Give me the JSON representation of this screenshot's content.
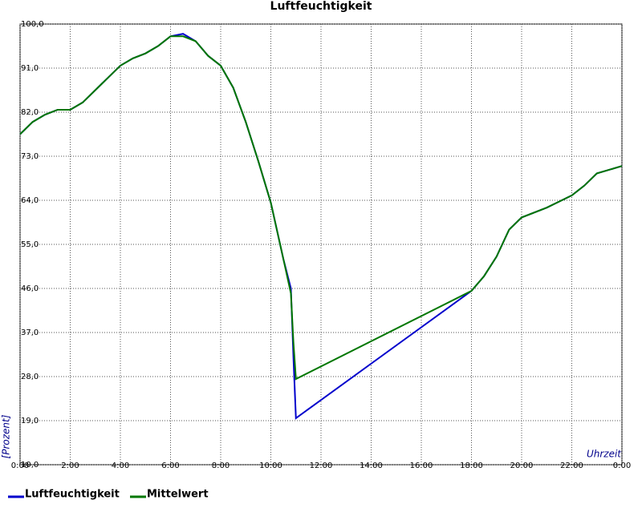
{
  "chart_data": {
    "type": "line",
    "title": "Luftfeuchtigkeit",
    "x_label": "Uhrzeit",
    "y_label": "[Prozent]",
    "xlim": [
      0,
      24
    ],
    "xticks": [
      {
        "value": 0,
        "label": "0:00"
      },
      {
        "value": 2,
        "label": "2:00"
      },
      {
        "value": 4,
        "label": "4:00"
      },
      {
        "value": 6,
        "label": "6:00"
      },
      {
        "value": 8,
        "label": "8:00"
      },
      {
        "value": 10,
        "label": "10:00"
      },
      {
        "value": 12,
        "label": "12:00"
      },
      {
        "value": 14,
        "label": "14:00"
      },
      {
        "value": 16,
        "label": "16:00"
      },
      {
        "value": 18,
        "label": "18:00"
      },
      {
        "value": 20,
        "label": "20:00"
      },
      {
        "value": 22,
        "label": "22:00"
      },
      {
        "value": 24,
        "label": "0:00"
      }
    ],
    "ylim": [
      10,
      100
    ],
    "yticks": [
      {
        "value": 10,
        "label": "10,0"
      },
      {
        "value": 19,
        "label": "19,0"
      },
      {
        "value": 28,
        "label": "28,0"
      },
      {
        "value": 37,
        "label": "37,0"
      },
      {
        "value": 46,
        "label": "46,0"
      },
      {
        "value": 55,
        "label": "55,0"
      },
      {
        "value": 64,
        "label": "64,0"
      },
      {
        "value": 73,
        "label": "73,0"
      },
      {
        "value": 82,
        "label": "82,0"
      },
      {
        "value": 91,
        "label": "91,0"
      },
      {
        "value": 100,
        "label": "100,0"
      }
    ],
    "grid": true,
    "x": [
      0,
      0.5,
      1,
      1.5,
      2,
      2.5,
      3,
      3.5,
      4,
      4.5,
      5,
      5.5,
      6,
      6.5,
      7,
      7.5,
      8,
      8.5,
      9,
      9.5,
      10,
      10.5,
      10.8,
      10.9,
      11,
      18,
      18.5,
      19,
      19.5,
      20,
      21,
      22,
      22.5,
      23,
      24
    ],
    "series": [
      {
        "name": "Luftfeuchtigkeit",
        "color": "#0000cc",
        "values": [
          77.5,
          80,
          81.5,
          82.5,
          82.5,
          84,
          86.5,
          89,
          91.5,
          93,
          94,
          95.5,
          97.5,
          98,
          96.5,
          93.5,
          91.5,
          87,
          80,
          72,
          63.5,
          52,
          46,
          32,
          19.5,
          45.5,
          48.5,
          52.5,
          58,
          60.5,
          62.5,
          65,
          67,
          69.5,
          71
        ]
      },
      {
        "name": "Mittelwert",
        "color": "#007700",
        "values": [
          77.5,
          80,
          81.5,
          82.5,
          82.5,
          84,
          86.5,
          89,
          91.5,
          93,
          94,
          95.5,
          97.5,
          97.5,
          96.5,
          93.5,
          91.5,
          87,
          80,
          72,
          63.5,
          52,
          45,
          35,
          27.5,
          45.5,
          48.5,
          52.5,
          58,
          60.5,
          62.5,
          65,
          67,
          69.5,
          71
        ]
      }
    ]
  }
}
